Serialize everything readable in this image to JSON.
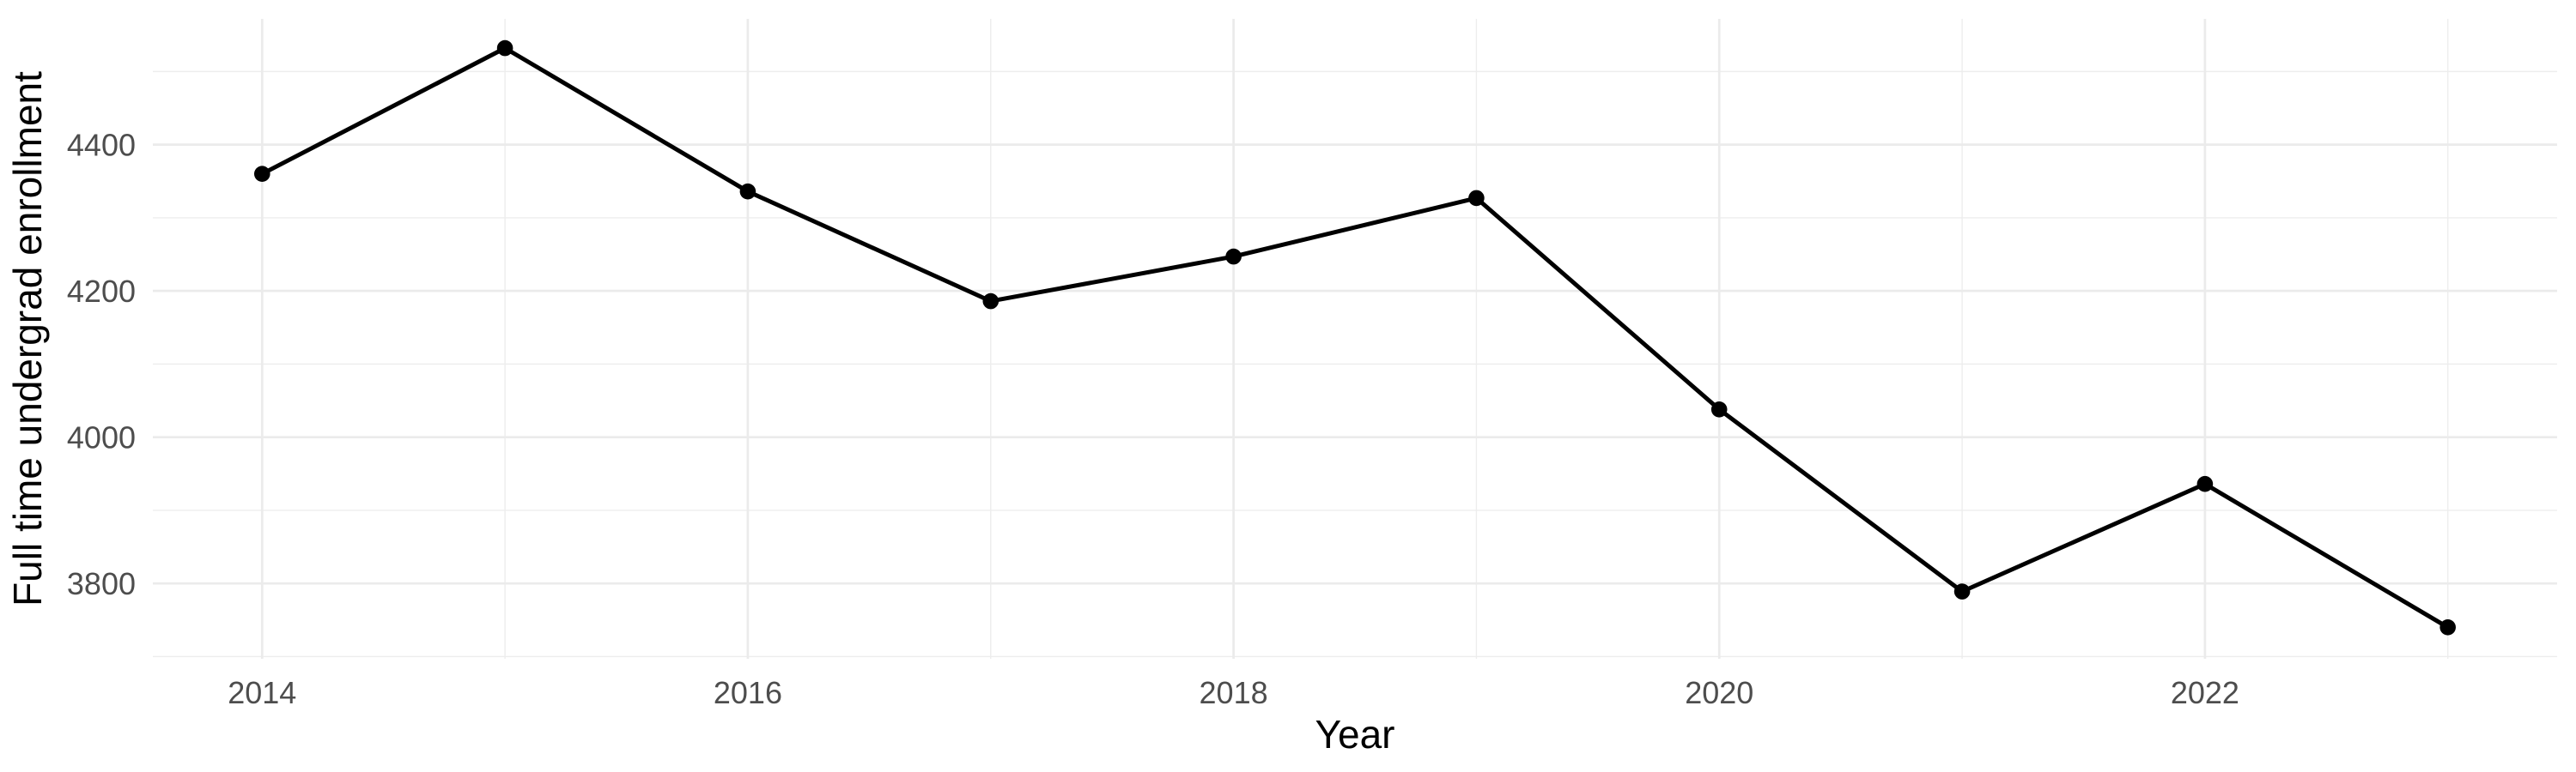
{
  "chart_data": {
    "type": "line",
    "title": "",
    "xlabel": "Year",
    "ylabel": "Full time undergrad enrollment",
    "series": [
      {
        "name": "Full time undergrad enrollment",
        "x": [
          2014,
          2015,
          2016,
          2017,
          2018,
          2019,
          2020,
          2021,
          2022,
          2023
        ],
        "values": [
          4360,
          4532,
          4336,
          4186,
          4247,
          4327,
          4038,
          3789,
          3936,
          3740
        ]
      }
    ],
    "x_tick_labels": [
      "2014",
      "2016",
      "2018",
      "2020",
      "2022"
    ],
    "x_ticks": [
      2014,
      2016,
      2018,
      2020,
      2022
    ],
    "x_minor_gridlines": [
      2015,
      2017,
      2019,
      2021,
      2023
    ],
    "y_tick_labels": [
      "3800",
      "4000",
      "4200",
      "4400"
    ],
    "y_ticks": [
      3800,
      4000,
      4200,
      4400
    ],
    "y_minor_gridlines": [
      3700,
      3900,
      4100,
      4300,
      4500
    ],
    "xlim": [
      2013.55,
      2023.45
    ],
    "ylim": [
      3697,
      4572
    ],
    "grid": true,
    "legend": false,
    "marker": "point",
    "colors": {
      "line": "#000000",
      "point": "#000000",
      "grid_major": "#EBEBEB",
      "grid_minor": "#EDEDED",
      "axis_text": "#4D4D4D",
      "axis_title": "#000000",
      "background": "#FFFFFF"
    }
  }
}
